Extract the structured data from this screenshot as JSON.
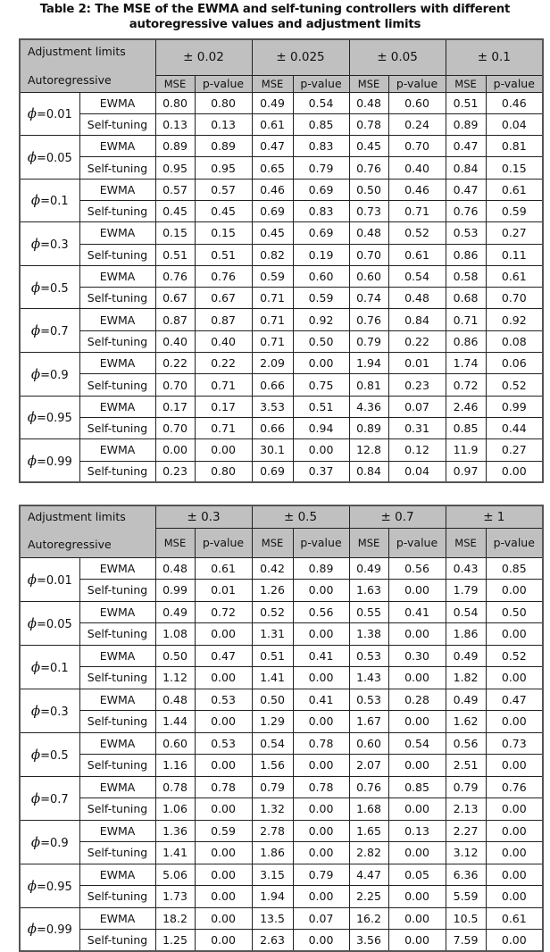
{
  "title": "Table 2: The MSE of the EWMA and self-tuning controllers with different autoregressive values and adjustment limits",
  "header_labels": {
    "adjustment_limits": "Adjustment limits",
    "autoregressive": "Autoregressive",
    "mse": "MSE",
    "p_value": "p-value"
  },
  "phi_symbol": "ϕ",
  "methods": [
    "EWMA",
    "Self-tuning"
  ],
  "tables": [
    {
      "limits": [
        "± 0.02",
        "± 0.025",
        "± 0.05",
        "± 0.1"
      ],
      "groups": [
        {
          "phi": "=0.01",
          "rows": [
            [
              "0.80",
              "0.80",
              "0.49",
              "0.54",
              "0.48",
              "0.60",
              "0.51",
              "0.46"
            ],
            [
              "0.13",
              "0.13",
              "0.61",
              "0.85",
              "0.78",
              "0.24",
              "0.89",
              "0.04"
            ]
          ]
        },
        {
          "phi": "=0.05",
          "rows": [
            [
              "0.89",
              "0.89",
              "0.47",
              "0.83",
              "0.45",
              "0.70",
              "0.47",
              "0.81"
            ],
            [
              "0.95",
              "0.95",
              "0.65",
              "0.79",
              "0.76",
              "0.40",
              "0.84",
              "0.15"
            ]
          ]
        },
        {
          "phi": "=0.1",
          "rows": [
            [
              "0.57",
              "0.57",
              "0.46",
              "0.69",
              "0.50",
              "0.46",
              "0.47",
              "0.61"
            ],
            [
              "0.45",
              "0.45",
              "0.69",
              "0.83",
              "0.73",
              "0.71",
              "0.76",
              "0.59"
            ]
          ]
        },
        {
          "phi": "=0.3",
          "rows": [
            [
              "0.15",
              "0.15",
              "0.45",
              "0.69",
              "0.48",
              "0.52",
              "0.53",
              "0.27"
            ],
            [
              "0.51",
              "0.51",
              "0.82",
              "0.19",
              "0.70",
              "0.61",
              "0.86",
              "0.11"
            ]
          ]
        },
        {
          "phi": "=0.5",
          "rows": [
            [
              "0.76",
              "0.76",
              "0.59",
              "0.60",
              "0.60",
              "0.54",
              "0.58",
              "0.61"
            ],
            [
              "0.67",
              "0.67",
              "0.71",
              "0.59",
              "0.74",
              "0.48",
              "0.68",
              "0.70"
            ]
          ]
        },
        {
          "phi": "=0.7",
          "rows": [
            [
              "0.87",
              "0.87",
              "0.71",
              "0.92",
              "0.76",
              "0.84",
              "0.71",
              "0.92"
            ],
            [
              "0.40",
              "0.40",
              "0.71",
              "0.50",
              "0.79",
              "0.22",
              "0.86",
              "0.08"
            ]
          ]
        },
        {
          "phi": "=0.9",
          "rows": [
            [
              "0.22",
              "0.22",
              "2.09",
              "0.00",
              "1.94",
              "0.01",
              "1.74",
              "0.06"
            ],
            [
              "0.70",
              "0.71",
              "0.66",
              "0.75",
              "0.81",
              "0.23",
              "0.72",
              "0.52"
            ]
          ]
        },
        {
          "phi": "=0.95",
          "rows": [
            [
              "0.17",
              "0.17",
              "3.53",
              "0.51",
              "4.36",
              "0.07",
              "2.46",
              "0.99"
            ],
            [
              "0.70",
              "0.71",
              "0.66",
              "0.94",
              "0.89",
              "0.31",
              "0.85",
              "0.44"
            ]
          ]
        },
        {
          "phi": "=0.99",
          "rows": [
            [
              "0.00",
              "0.00",
              "30.1",
              "0.00",
              "12.8",
              "0.12",
              "11.9",
              "0.27"
            ],
            [
              "0.23",
              "0.80",
              "0.69",
              "0.37",
              "0.84",
              "0.04",
              "0.97",
              "0.00"
            ]
          ]
        }
      ]
    },
    {
      "limits": [
        "± 0.3",
        "± 0.5",
        "± 0.7",
        "± 1"
      ],
      "groups": [
        {
          "phi": "=0.01",
          "rows": [
            [
              "0.48",
              "0.61",
              "0.42",
              "0.89",
              "0.49",
              "0.56",
              "0.43",
              "0.85"
            ],
            [
              "0.99",
              "0.01",
              "1.26",
              "0.00",
              "1.63",
              "0.00",
              "1.79",
              "0.00"
            ]
          ]
        },
        {
          "phi": "=0.05",
          "rows": [
            [
              "0.49",
              "0.72",
              "0.52",
              "0.56",
              "0.55",
              "0.41",
              "0.54",
              "0.50"
            ],
            [
              "1.08",
              "0.00",
              "1.31",
              "0.00",
              "1.38",
              "0.00",
              "1.86",
              "0.00"
            ]
          ]
        },
        {
          "phi": "=0.1",
          "rows": [
            [
              "0.50",
              "0.47",
              "0.51",
              "0.41",
              "0.53",
              "0.30",
              "0.49",
              "0.52"
            ],
            [
              "1.12",
              "0.00",
              "1.41",
              "0.00",
              "1.43",
              "0.00",
              "1.82",
              "0.00"
            ]
          ]
        },
        {
          "phi": "=0.3",
          "rows": [
            [
              "0.48",
              "0.53",
              "0.50",
              "0.41",
              "0.53",
              "0.28",
              "0.49",
              "0.47"
            ],
            [
              "1.44",
              "0.00",
              "1.29",
              "0.00",
              "1.67",
              "0.00",
              "1.62",
              "0.00"
            ]
          ]
        },
        {
          "phi": "=0.5",
          "rows": [
            [
              "0.60",
              "0.53",
              "0.54",
              "0.78",
              "0.60",
              "0.54",
              "0.56",
              "0.73"
            ],
            [
              "1.16",
              "0.00",
              "1.56",
              "0.00",
              "2.07",
              "0.00",
              "2.51",
              "0.00"
            ]
          ]
        },
        {
          "phi": "=0.7",
          "rows": [
            [
              "0.78",
              "0.78",
              "0.79",
              "0.78",
              "0.76",
              "0.85",
              "0.79",
              "0.76"
            ],
            [
              "1.06",
              "0.00",
              "1.32",
              "0.00",
              "1.68",
              "0.00",
              "2.13",
              "0.00"
            ]
          ]
        },
        {
          "phi": "=0.9",
          "rows": [
            [
              "1.36",
              "0.59",
              "2.78",
              "0.00",
              "1.65",
              "0.13",
              "2.27",
              "0.00"
            ],
            [
              "1.41",
              "0.00",
              "1.86",
              "0.00",
              "2.82",
              "0.00",
              "3.12",
              "0.00"
            ]
          ]
        },
        {
          "phi": "=0.95",
          "rows": [
            [
              "5.06",
              "0.00",
              "3.15",
              "0.79",
              "4.47",
              "0.05",
              "6.36",
              "0.00"
            ],
            [
              "1.73",
              "0.00",
              "1.94",
              "0.00",
              "2.25",
              "0.00",
              "5.59",
              "0.00"
            ]
          ]
        },
        {
          "phi": "=0.99",
          "rows": [
            [
              "18.2",
              "0.00",
              "13.5",
              "0.07",
              "16.2",
              "0.00",
              "10.5",
              "0.61"
            ],
            [
              "1.25",
              "0.00",
              "2.63",
              "0.00",
              "3.56",
              "0.00",
              "7.59",
              "0.00"
            ]
          ]
        }
      ]
    }
  ]
}
